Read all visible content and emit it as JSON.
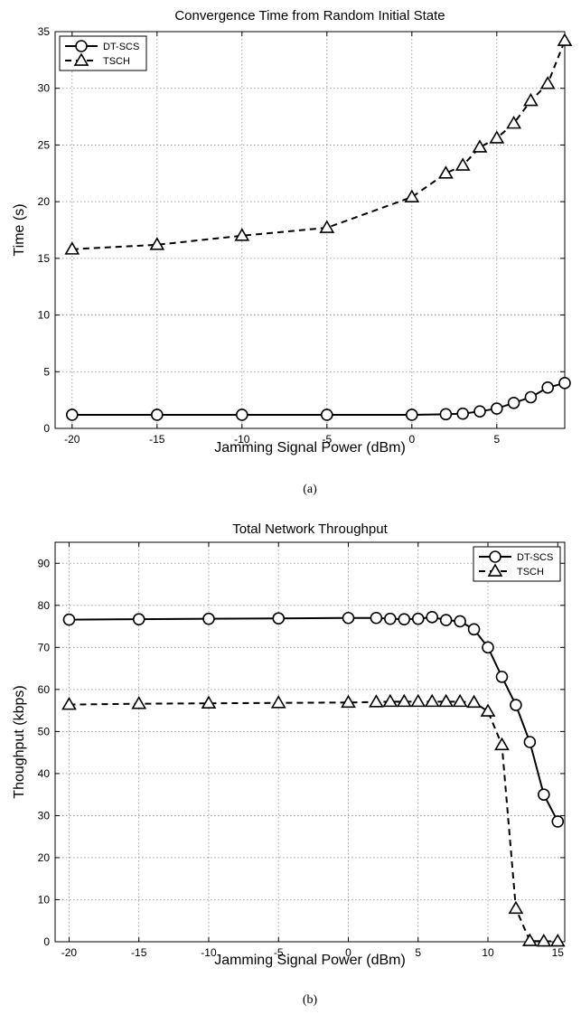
{
  "chart_data": [
    {
      "type": "line",
      "title": "Convergence Time from Random Initial State",
      "xlabel": "Jamming Signal Power (dBm)",
      "ylabel": "Time (s)",
      "xlim": [
        -21,
        9
      ],
      "ylim": [
        0,
        35
      ],
      "xticks": [
        -20,
        -15,
        -10,
        -5,
        0,
        5
      ],
      "yticks": [
        0,
        5,
        10,
        15,
        20,
        25,
        30,
        35
      ],
      "xgrid": [
        -20,
        -15,
        -10,
        -5,
        0,
        5
      ],
      "ygrid": [
        5,
        10,
        15,
        20,
        25,
        30
      ],
      "grid": true,
      "legend_position": "top-left",
      "caption": "(a)",
      "series": [
        {
          "name": "DT-SCS",
          "marker": "circle",
          "line_style": "solid",
          "x": [
            -20,
            -15,
            -10,
            -5,
            0,
            2,
            3,
            4,
            5,
            6,
            7,
            8,
            9
          ],
          "y": [
            1.2,
            1.2,
            1.2,
            1.2,
            1.2,
            1.25,
            1.3,
            1.5,
            1.75,
            2.25,
            2.75,
            3.6,
            4.0
          ]
        },
        {
          "name": "TSCH",
          "marker": "triangle",
          "line_style": "dashed",
          "x": [
            -20,
            -15,
            -10,
            -5,
            0,
            2,
            3,
            4,
            5,
            6,
            7,
            8,
            9
          ],
          "y": [
            15.8,
            16.2,
            17.0,
            17.7,
            20.4,
            22.5,
            23.2,
            24.8,
            25.6,
            26.9,
            28.9,
            30.4,
            34.2
          ]
        }
      ]
    },
    {
      "type": "line",
      "title": "Total Network Throughput",
      "xlabel": "Jamming Signal Power (dBm)",
      "ylabel": "Thoughput (kbps)",
      "xlim": [
        -21,
        15.5
      ],
      "ylim": [
        0,
        95
      ],
      "xticks": [
        -20,
        -15,
        -10,
        -5,
        0,
        5,
        10,
        15
      ],
      "yticks": [
        0,
        10,
        20,
        30,
        40,
        50,
        60,
        70,
        80,
        90
      ],
      "xgrid": [
        -20,
        -15,
        -10,
        -5,
        0,
        5,
        10
      ],
      "ygrid": [
        10,
        20,
        30,
        40,
        50,
        60,
        70,
        80,
        90
      ],
      "grid": true,
      "legend_position": "top-right",
      "caption": "(b)",
      "series": [
        {
          "name": "DT-SCS",
          "marker": "circle",
          "line_style": "solid",
          "x": [
            -20,
            -15,
            -10,
            -5,
            0,
            2,
            3,
            4,
            5,
            6,
            7,
            8,
            9,
            10,
            11,
            12,
            13,
            14,
            15
          ],
          "y": [
            76.6,
            76.7,
            76.8,
            76.9,
            77.0,
            77.0,
            76.8,
            76.7,
            76.8,
            77.2,
            76.5,
            76.2,
            74.3,
            70.0,
            63.0,
            56.3,
            47.5,
            35.0,
            28.6
          ]
        },
        {
          "name": "TSCH",
          "marker": "triangle",
          "line_style": "dashed",
          "x": [
            -20,
            -15,
            -10,
            -5,
            0,
            2,
            3,
            4,
            5,
            6,
            7,
            8,
            9,
            10,
            11,
            12,
            13,
            14,
            15
          ],
          "y": [
            56.4,
            56.6,
            56.7,
            56.8,
            56.9,
            57.0,
            57.1,
            57.1,
            57.1,
            57.1,
            57.1,
            57.1,
            56.9,
            54.8,
            46.8,
            7.9,
            0.2,
            0.1,
            0.1
          ]
        }
      ]
    }
  ]
}
